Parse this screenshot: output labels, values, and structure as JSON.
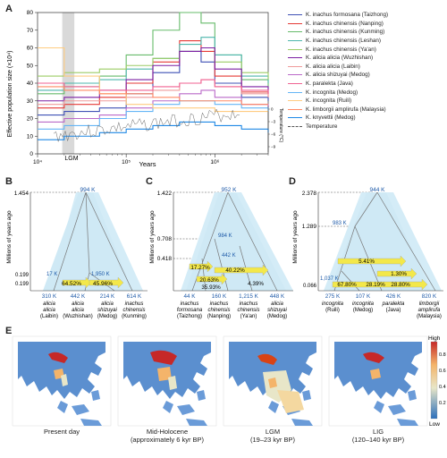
{
  "panelA": {
    "letter": "A",
    "ylabel": "Effective population size (×10⁴)",
    "xlabel": "Years",
    "yticks": [
      "0",
      "10",
      "20",
      "30",
      "40",
      "50",
      "60",
      "70",
      "80"
    ],
    "xticks": [
      "10⁴",
      "10⁵",
      "10⁶"
    ],
    "lgm_label": "LGM",
    "temp_axis_label": "Temperature (°C)",
    "temp_ticks": [
      "0",
      "−3",
      "−6",
      "−9"
    ],
    "legend": [
      {
        "label": "K. inachus formosana (Taizhong)",
        "color": "#3f51b5"
      },
      {
        "label": "K. inachus chinensis (Nanping)",
        "color": "#e53935"
      },
      {
        "label": "K. inachus chinensis (Kunming)",
        "color": "#66bb6a"
      },
      {
        "label": "K. inachus chinensis (Leshan)",
        "color": "#4db6ac"
      },
      {
        "label": "K. inachus chinensis (Ya'an)",
        "color": "#9ccc65"
      },
      {
        "label": "K. alicia alicia (Wuzhishan)",
        "color": "#7b1fa2"
      },
      {
        "label": "K. alicia alicia (Laibin)",
        "color": "#ef9a9a"
      },
      {
        "label": "K. alicia shizuyai (Medog)",
        "color": "#ba68c8"
      },
      {
        "label": "K. paralekta (Java)",
        "color": "#f06292"
      },
      {
        "label": "K. incognita (Medog)",
        "color": "#64b5f6"
      },
      {
        "label": "K. incognita (Ruili)",
        "color": "#ffcc80"
      },
      {
        "label": "K. limborgii amplirufa (Malaysia)",
        "color": "#ff8a65"
      },
      {
        "label": "K. knyvettii (Medog)",
        "color": "#1e88e5"
      },
      {
        "label": "Temperature",
        "color": "#555555"
      }
    ]
  },
  "panelB": {
    "letter": "B",
    "ylabel": "Millions of years ago",
    "root_time": "1.454",
    "t1": "0.199",
    "t2": "0.199",
    "root_ne": "994 K",
    "ne_17": "17 K",
    "ne_1950": "1,950 K",
    "mig1": "64.52%",
    "mig2": "45.96%",
    "tips": [
      {
        "ne": "310 K",
        "name": "alicia\nalicia\n(Laibin)"
      },
      {
        "ne": "442 K",
        "name": "alicia\nalicia\n(Wuzhishan)"
      },
      {
        "ne": "214 K",
        "name": "alicia\nshizuyai\n(Medog)"
      },
      {
        "ne": "614 K",
        "name": "inachus\nchinensis\n(Kunming)"
      }
    ]
  },
  "panelC": {
    "letter": "C",
    "root_time": "1.422",
    "t1": "0.708",
    "t2": "0.418",
    "root_ne": "952 K",
    "ne_984": "984 K",
    "ne_442": "442 K",
    "mig1": "17.27%",
    "mig2": "40.22%",
    "mig3": "20.63%",
    "mig4": "35.93%",
    "mig5": "4.39%",
    "tips": [
      {
        "ne": "44 K",
        "name": "inachus\nformosana\n(Taizhong)"
      },
      {
        "ne": "160 K",
        "name": "inachus\nchinensis\n(Nanping)"
      },
      {
        "ne": "1,215 K",
        "name": "inachus\nchinensis\n(Ya'an)"
      },
      {
        "ne": "448 K",
        "name": "alicia\nshizuyai\n(Medog)"
      }
    ]
  },
  "panelD": {
    "letter": "D",
    "root_time": "2.378",
    "t1": "1.289",
    "t2": "0.066",
    "root_ne": "944 K",
    "ne_983": "983 K",
    "ne_1037": "1,037 K",
    "mig1": "5.41%",
    "mig2": "1.30%",
    "mig3": "67.80%",
    "mig4": "28.19%",
    "mig5": "28.80%",
    "tips": [
      {
        "ne": "275 K",
        "name": "incognita\n(Ruili)"
      },
      {
        "ne": "107 K",
        "name": "incognita\n(Medog)"
      },
      {
        "ne": "426 K",
        "name": "paralekta\n(Java)"
      },
      {
        "ne": "820 K",
        "name": "limborgii\namplirufa\n(Malaysia)"
      }
    ]
  },
  "panelE": {
    "letter": "E",
    "legend_high": "High",
    "legend_low": "Low",
    "legend_ticks": [
      "0.8",
      "0.6",
      "0.4",
      "0.2"
    ],
    "maps": [
      {
        "caption": "Present day"
      },
      {
        "caption": "Mid-Holocene\n(approximately 6 kyr BP)"
      },
      {
        "caption": "LGM\n(19–23 kyr BP)"
      },
      {
        "caption": "LIG\n(120–140 kyr BP)"
      }
    ]
  },
  "chart_data": {
    "type": "line",
    "title": "",
    "xlabel": "Years",
    "ylabel": "Effective population size (×10⁴)",
    "xscale": "log",
    "xlim": [
      10000,
      4000000
    ],
    "ylim": [
      0,
      80
    ],
    "shaded_region": {
      "label": "LGM",
      "x": [
        19000,
        26000
      ]
    },
    "series": [
      {
        "name": "K. inachus formosana (Taizhong)",
        "color": "#3f51b5",
        "x": [
          10000,
          20000,
          50000,
          100000,
          200000,
          400000,
          700000,
          1000000,
          2000000,
          4000000
        ],
        "y": [
          22,
          24,
          26,
          34,
          46,
          58,
          52,
          40,
          32,
          30
        ]
      },
      {
        "name": "K. inachus chinensis (Nanping)",
        "color": "#e53935",
        "x": [
          10000,
          20000,
          50000,
          100000,
          200000,
          400000,
          700000,
          1000000,
          2000000,
          4000000
        ],
        "y": [
          26,
          28,
          32,
          40,
          52,
          64,
          58,
          44,
          35,
          32
        ]
      },
      {
        "name": "K. inachus chinensis (Kunming)",
        "color": "#66bb6a",
        "x": [
          10000,
          20000,
          50000,
          100000,
          200000,
          400000,
          700000,
          1000000,
          2000000,
          4000000
        ],
        "y": [
          34,
          38,
          44,
          56,
          70,
          80,
          74,
          56,
          42,
          38
        ]
      },
      {
        "name": "K. inachus chinensis (Leshan)",
        "color": "#4db6ac",
        "x": [
          10000,
          20000,
          50000,
          100000,
          200000,
          400000,
          700000,
          1000000,
          2000000,
          4000000
        ],
        "y": [
          36,
          40,
          42,
          48,
          54,
          62,
          66,
          56,
          44,
          40
        ]
      },
      {
        "name": "K. inachus chinensis (Ya'an)",
        "color": "#9ccc65",
        "x": [
          10000,
          20000,
          50000,
          100000,
          200000,
          400000,
          700000,
          1000000,
          2000000,
          4000000
        ],
        "y": [
          44,
          46,
          48,
          50,
          54,
          58,
          60,
          52,
          46,
          42
        ]
      },
      {
        "name": "K. alicia alicia (Wuzhishan)",
        "color": "#7b1fa2",
        "x": [
          10000,
          20000,
          50000,
          100000,
          200000,
          400000,
          700000,
          1000000,
          2000000,
          4000000
        ],
        "y": [
          30,
          32,
          36,
          42,
          50,
          58,
          60,
          48,
          38,
          34
        ]
      },
      {
        "name": "K. alicia alicia (Laibin)",
        "color": "#ef9a9a",
        "x": [
          10000,
          20000,
          50000,
          100000,
          200000,
          400000,
          700000,
          1000000,
          2000000,
          4000000
        ],
        "y": [
          28,
          30,
          30,
          32,
          36,
          40,
          42,
          38,
          34,
          32
        ]
      },
      {
        "name": "K. alicia shizuyai (Medog)",
        "color": "#ba68c8",
        "x": [
          10000,
          20000,
          50000,
          100000,
          200000,
          400000,
          700000,
          1000000,
          2000000,
          4000000
        ],
        "y": [
          18,
          20,
          22,
          26,
          30,
          34,
          36,
          32,
          28,
          26
        ]
      },
      {
        "name": "K. paralekta (Java)",
        "color": "#f06292",
        "x": [
          10000,
          20000,
          50000,
          100000,
          200000,
          400000,
          700000,
          1000000,
          2000000,
          4000000
        ],
        "y": [
          40,
          38,
          36,
          36,
          38,
          40,
          42,
          38,
          36,
          34
        ]
      },
      {
        "name": "K. incognita (Medog)",
        "color": "#64b5f6",
        "x": [
          10000,
          20000,
          50000,
          100000,
          200000,
          400000,
          700000,
          1000000,
          2000000,
          4000000
        ],
        "y": [
          14,
          16,
          20,
          24,
          28,
          30,
          30,
          28,
          26,
          24
        ]
      },
      {
        "name": "K. incognita (Ruili)",
        "color": "#ffcc80",
        "x": [
          10000,
          20000,
          50000,
          100000,
          200000,
          400000,
          700000,
          1000000,
          2000000,
          4000000
        ],
        "y": [
          60,
          44,
          34,
          28,
          26,
          26,
          26,
          24,
          24,
          24
        ]
      },
      {
        "name": "K. limborgii amplirufa (Malaysia)",
        "color": "#ff8a65",
        "x": [
          10000,
          20000,
          50000,
          100000,
          200000,
          400000,
          700000,
          1000000,
          2000000,
          4000000
        ],
        "y": [
          38,
          36,
          34,
          34,
          32,
          30,
          30,
          30,
          28,
          28
        ]
      },
      {
        "name": "K. knyvettii (Medog)",
        "color": "#1e88e5",
        "x": [
          10000,
          20000,
          50000,
          100000,
          200000,
          400000,
          700000,
          1000000,
          2000000,
          4000000
        ],
        "y": [
          8,
          10,
          12,
          14,
          16,
          18,
          18,
          16,
          14,
          12
        ]
      }
    ]
  }
}
